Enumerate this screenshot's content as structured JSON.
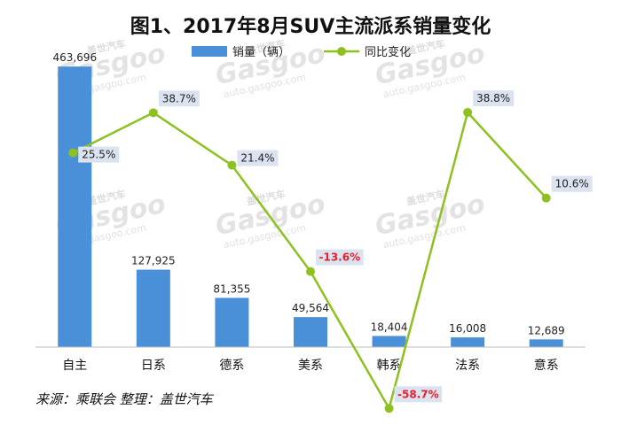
{
  "chart_data": {
    "type": "bar",
    "title": "图1、2017年8月SUV主流派系销量变化",
    "categories": [
      "自主",
      "日系",
      "德系",
      "美系",
      "韩系",
      "法系",
      "意系"
    ],
    "series": [
      {
        "name": "销量（辆）",
        "type": "bar",
        "axis": "left",
        "values": [
          463696,
          127925,
          81355,
          49564,
          18404,
          16008,
          12689
        ],
        "labels": [
          "463,696",
          "127,925",
          "81,355",
          "49,564",
          "18,404",
          "16,008",
          "12,689"
        ],
        "color": "#4a90d9"
      },
      {
        "name": "同比变化",
        "type": "line",
        "axis": "right",
        "values": [
          25.5,
          38.7,
          21.4,
          -13.6,
          -58.7,
          38.8,
          10.6
        ],
        "labels": [
          "25.5%",
          "38.7%",
          "21.4%",
          "-13.6%",
          "-58.7%",
          "38.8%",
          "10.6%"
        ],
        "color": "#8cc11f"
      }
    ],
    "ylim_left": [
      0,
      480000
    ],
    "ylim_right": [
      -70,
      70
    ],
    "legend_position": "top",
    "grid": false,
    "colors": {
      "negative_label": "#e8202a",
      "positive_label": "#222222",
      "label_bg": "#dbe3f0"
    }
  },
  "source_note": "来源：乘联会    整理：盖世汽车",
  "watermark": {
    "brand_cn": "盖世汽车",
    "brand_en": "Gasgoo",
    "url": "auto.gasgoo.com"
  }
}
